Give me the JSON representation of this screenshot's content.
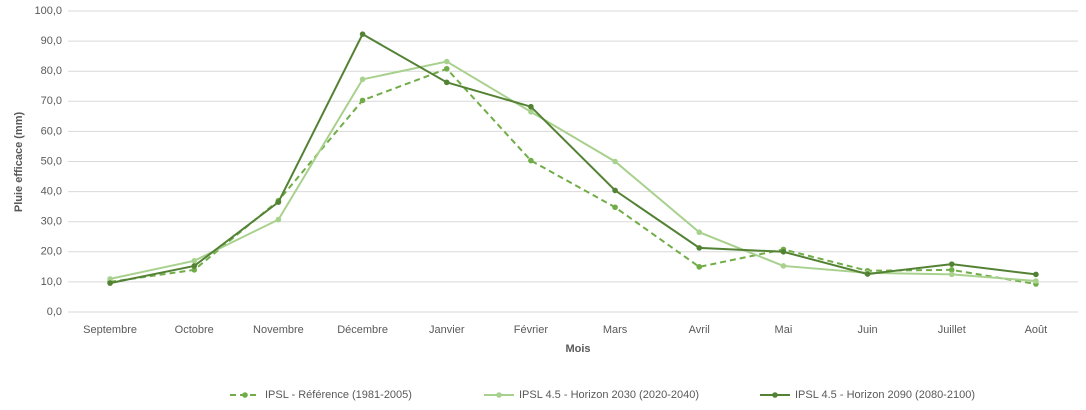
{
  "chart_data": {
    "type": "line",
    "y_label": "Pluie efficace (mm)",
    "x_label": "Mois",
    "categories": [
      "Septembre",
      "Octobre",
      "Novembre",
      "Décembre",
      "Janvier",
      "Février",
      "Mars",
      "Avril",
      "Mai",
      "Juin",
      "Juillet",
      "Août"
    ],
    "series": [
      {
        "name": "IPSL - Référence (1981-2005)",
        "color": "#70ad47",
        "dashed": true,
        "values": [
          10,
          14,
          37,
          70.3,
          80.8,
          50.3,
          34.8,
          15,
          20.8,
          13.7,
          14,
          9.3
        ]
      },
      {
        "name": "IPSL 4.5 - Horizon 2030 (2020-2040)",
        "color": "#a9d18e",
        "dashed": false,
        "values": [
          11,
          17,
          30.7,
          77.3,
          83.2,
          66.5,
          50,
          26.5,
          15.3,
          13,
          12.5,
          10.3
        ]
      },
      {
        "name": "IPSL 4.5 - Horizon 2090 (2080-2100)",
        "color": "#548235",
        "dashed": false,
        "values": [
          9.6,
          15.3,
          36.5,
          92.3,
          76.3,
          68.2,
          40.4,
          21.3,
          20,
          12.6,
          15.9,
          12.5
        ]
      }
    ],
    "ylim": [
      0,
      100
    ],
    "yticks": [
      {
        "value": 0,
        "label": "0,0"
      },
      {
        "value": 10,
        "label": "10,0"
      },
      {
        "value": 20,
        "label": "20,0"
      },
      {
        "value": 30,
        "label": "30,0"
      },
      {
        "value": 40,
        "label": "40,0"
      },
      {
        "value": 50,
        "label": "50,0"
      },
      {
        "value": 60,
        "label": "60,0"
      },
      {
        "value": 70,
        "label": "70,0"
      },
      {
        "value": 80,
        "label": "80,0"
      },
      {
        "value": 90,
        "label": "90,0"
      },
      {
        "value": 100,
        "label": "100,0"
      }
    ],
    "grid": true,
    "legend": "bottom"
  }
}
